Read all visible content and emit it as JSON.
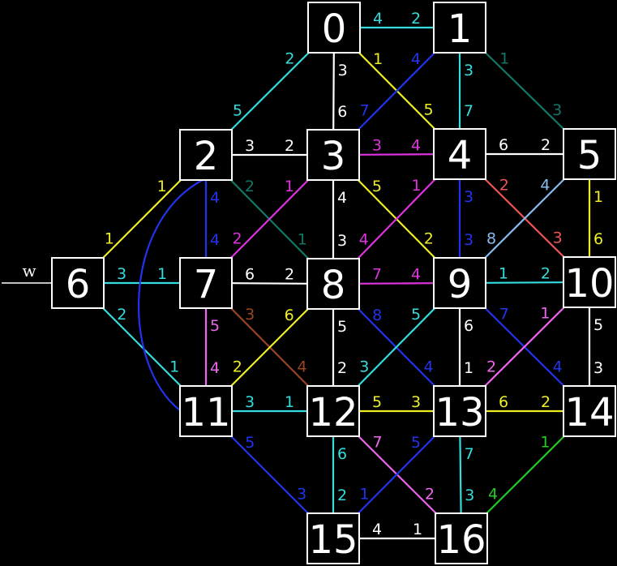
{
  "input": {
    "label": "w",
    "node": "6"
  },
  "colors": {
    "white": "#ffffff",
    "cyan": "#33dddd",
    "yellow": "#eeee22",
    "blue": "#2233ee",
    "teal": "#117766",
    "magenta": "#dd33dd",
    "green": "#22cc22",
    "pink": "#ee66ee",
    "orange": "#994422",
    "salmon": "#ee5555",
    "lightblue": "#88bbee"
  },
  "nodes": [
    {
      "id": "0",
      "label": "0"
    },
    {
      "id": "1",
      "label": "1"
    },
    {
      "id": "2",
      "label": "2"
    },
    {
      "id": "3",
      "label": "3"
    },
    {
      "id": "4",
      "label": "4"
    },
    {
      "id": "5",
      "label": "5"
    },
    {
      "id": "6",
      "label": "6"
    },
    {
      "id": "7",
      "label": "7"
    },
    {
      "id": "8",
      "label": "8"
    },
    {
      "id": "9",
      "label": "9"
    },
    {
      "id": "10",
      "label": "10"
    },
    {
      "id": "11",
      "label": "11"
    },
    {
      "id": "12",
      "label": "12"
    },
    {
      "id": "13",
      "label": "13"
    },
    {
      "id": "14",
      "label": "14"
    },
    {
      "id": "15",
      "label": "15"
    },
    {
      "id": "16",
      "label": "16"
    }
  ],
  "edges": [
    {
      "from": "0",
      "to": "1",
      "color": "cyan",
      "from_port": "4",
      "to_port": "2"
    },
    {
      "from": "0",
      "to": "2",
      "color": "cyan",
      "from_port": "2",
      "to_port": "5"
    },
    {
      "from": "0",
      "to": "3",
      "color": "white",
      "from_port": "3",
      "to_port": "6"
    },
    {
      "from": "0",
      "to": "4",
      "color": "yellow",
      "from_port": "1",
      "to_port": "5"
    },
    {
      "from": "1",
      "to": "3",
      "color": "blue",
      "from_port": "4",
      "to_port": "7"
    },
    {
      "from": "1",
      "to": "4",
      "color": "cyan",
      "from_port": "3",
      "to_port": "7"
    },
    {
      "from": "1",
      "to": "5",
      "color": "teal",
      "from_port": "1",
      "to_port": "3"
    },
    {
      "from": "2",
      "to": "3",
      "color": "white",
      "from_port": "3",
      "to_port": "2"
    },
    {
      "from": "2",
      "to": "6",
      "color": "yellow",
      "from_port": "1",
      "to_port": "1"
    },
    {
      "from": "2",
      "to": "7",
      "color": "blue",
      "from_port": "4",
      "to_port": "4"
    },
    {
      "from": "2",
      "to": "8",
      "color": "teal",
      "from_port": "2",
      "to_port": "1"
    },
    {
      "from": "3",
      "to": "4",
      "color": "magenta",
      "from_port": "3",
      "to_port": "4"
    },
    {
      "from": "3",
      "to": "7",
      "color": "magenta",
      "from_port": "1",
      "to_port": "2"
    },
    {
      "from": "3",
      "to": "8",
      "color": "white",
      "from_port": "4",
      "to_port": "3"
    },
    {
      "from": "3",
      "to": "9",
      "color": "yellow",
      "from_port": "5",
      "to_port": "2"
    },
    {
      "from": "4",
      "to": "5",
      "color": "white",
      "from_port": "6",
      "to_port": "2"
    },
    {
      "from": "4",
      "to": "8",
      "color": "magenta",
      "from_port": "1",
      "to_port": "4"
    },
    {
      "from": "4",
      "to": "9",
      "color": "blue",
      "from_port": "3",
      "to_port": "3"
    },
    {
      "from": "4",
      "to": "10",
      "color": "salmon",
      "from_port": "2",
      "to_port": "3"
    },
    {
      "from": "5",
      "to": "9",
      "color": "lightblue",
      "from_port": "4",
      "to_port": "8"
    },
    {
      "from": "5",
      "to": "10",
      "color": "yellow",
      "from_port": "1",
      "to_port": "6"
    },
    {
      "from": "6",
      "to": "7",
      "color": "cyan",
      "from_port": "3",
      "to_port": "1"
    },
    {
      "from": "6",
      "to": "11",
      "color": "cyan",
      "from_port": "2",
      "to_port": "1"
    },
    {
      "from": "7",
      "to": "8",
      "color": "white",
      "from_port": "6",
      "to_port": "2"
    },
    {
      "from": "7",
      "to": "11",
      "color": "pink",
      "from_port": "5",
      "to_port": "4"
    },
    {
      "from": "7",
      "to": "12",
      "color": "orange",
      "from_port": "3",
      "to_port": "4"
    },
    {
      "from": "8",
      "to": "9",
      "color": "magenta",
      "from_port": "7",
      "to_port": "4"
    },
    {
      "from": "8",
      "to": "11",
      "color": "yellow",
      "from_port": "6",
      "to_port": "2"
    },
    {
      "from": "8",
      "to": "12",
      "color": "white",
      "from_port": "5",
      "to_port": "2"
    },
    {
      "from": "8",
      "to": "13",
      "color": "blue",
      "from_port": "8",
      "to_port": "4"
    },
    {
      "from": "9",
      "to": "10",
      "color": "cyan",
      "from_port": "1",
      "to_port": "2"
    },
    {
      "from": "9",
      "to": "12",
      "color": "cyan",
      "from_port": "5",
      "to_port": "3"
    },
    {
      "from": "9",
      "to": "13",
      "color": "white",
      "from_port": "6",
      "to_port": "1"
    },
    {
      "from": "9",
      "to": "14",
      "color": "blue",
      "from_port": "7",
      "to_port": "4"
    },
    {
      "from": "10",
      "to": "13",
      "color": "pink",
      "from_port": "1",
      "to_port": "2"
    },
    {
      "from": "10",
      "to": "14",
      "color": "white",
      "from_port": "5",
      "to_port": "3"
    },
    {
      "from": "11",
      "to": "12",
      "color": "cyan",
      "from_port": "3",
      "to_port": "1"
    },
    {
      "from": "11",
      "to": "15",
      "color": "blue",
      "from_port": "5",
      "to_port": "3"
    },
    {
      "from": "12",
      "to": "13",
      "color": "yellow",
      "from_port": "5",
      "to_port": "3"
    },
    {
      "from": "12",
      "to": "15",
      "color": "cyan",
      "from_port": "6",
      "to_port": "2"
    },
    {
      "from": "12",
      "to": "16",
      "color": "pink",
      "from_port": "7",
      "to_port": "2"
    },
    {
      "from": "13",
      "to": "14",
      "color": "yellow",
      "from_port": "6",
      "to_port": "2"
    },
    {
      "from": "13",
      "to": "15",
      "color": "blue",
      "from_port": "5",
      "to_port": "1"
    },
    {
      "from": "13",
      "to": "16",
      "color": "cyan",
      "from_port": "7",
      "to_port": "3"
    },
    {
      "from": "14",
      "to": "16",
      "color": "green",
      "from_port": "1",
      "to_port": "4"
    },
    {
      "from": "15",
      "to": "16",
      "color": "white",
      "from_port": "4",
      "to_port": "1"
    },
    {
      "from": "2",
      "to": "11",
      "color": "blue",
      "from_port": "",
      "to_port": ""
    }
  ]
}
